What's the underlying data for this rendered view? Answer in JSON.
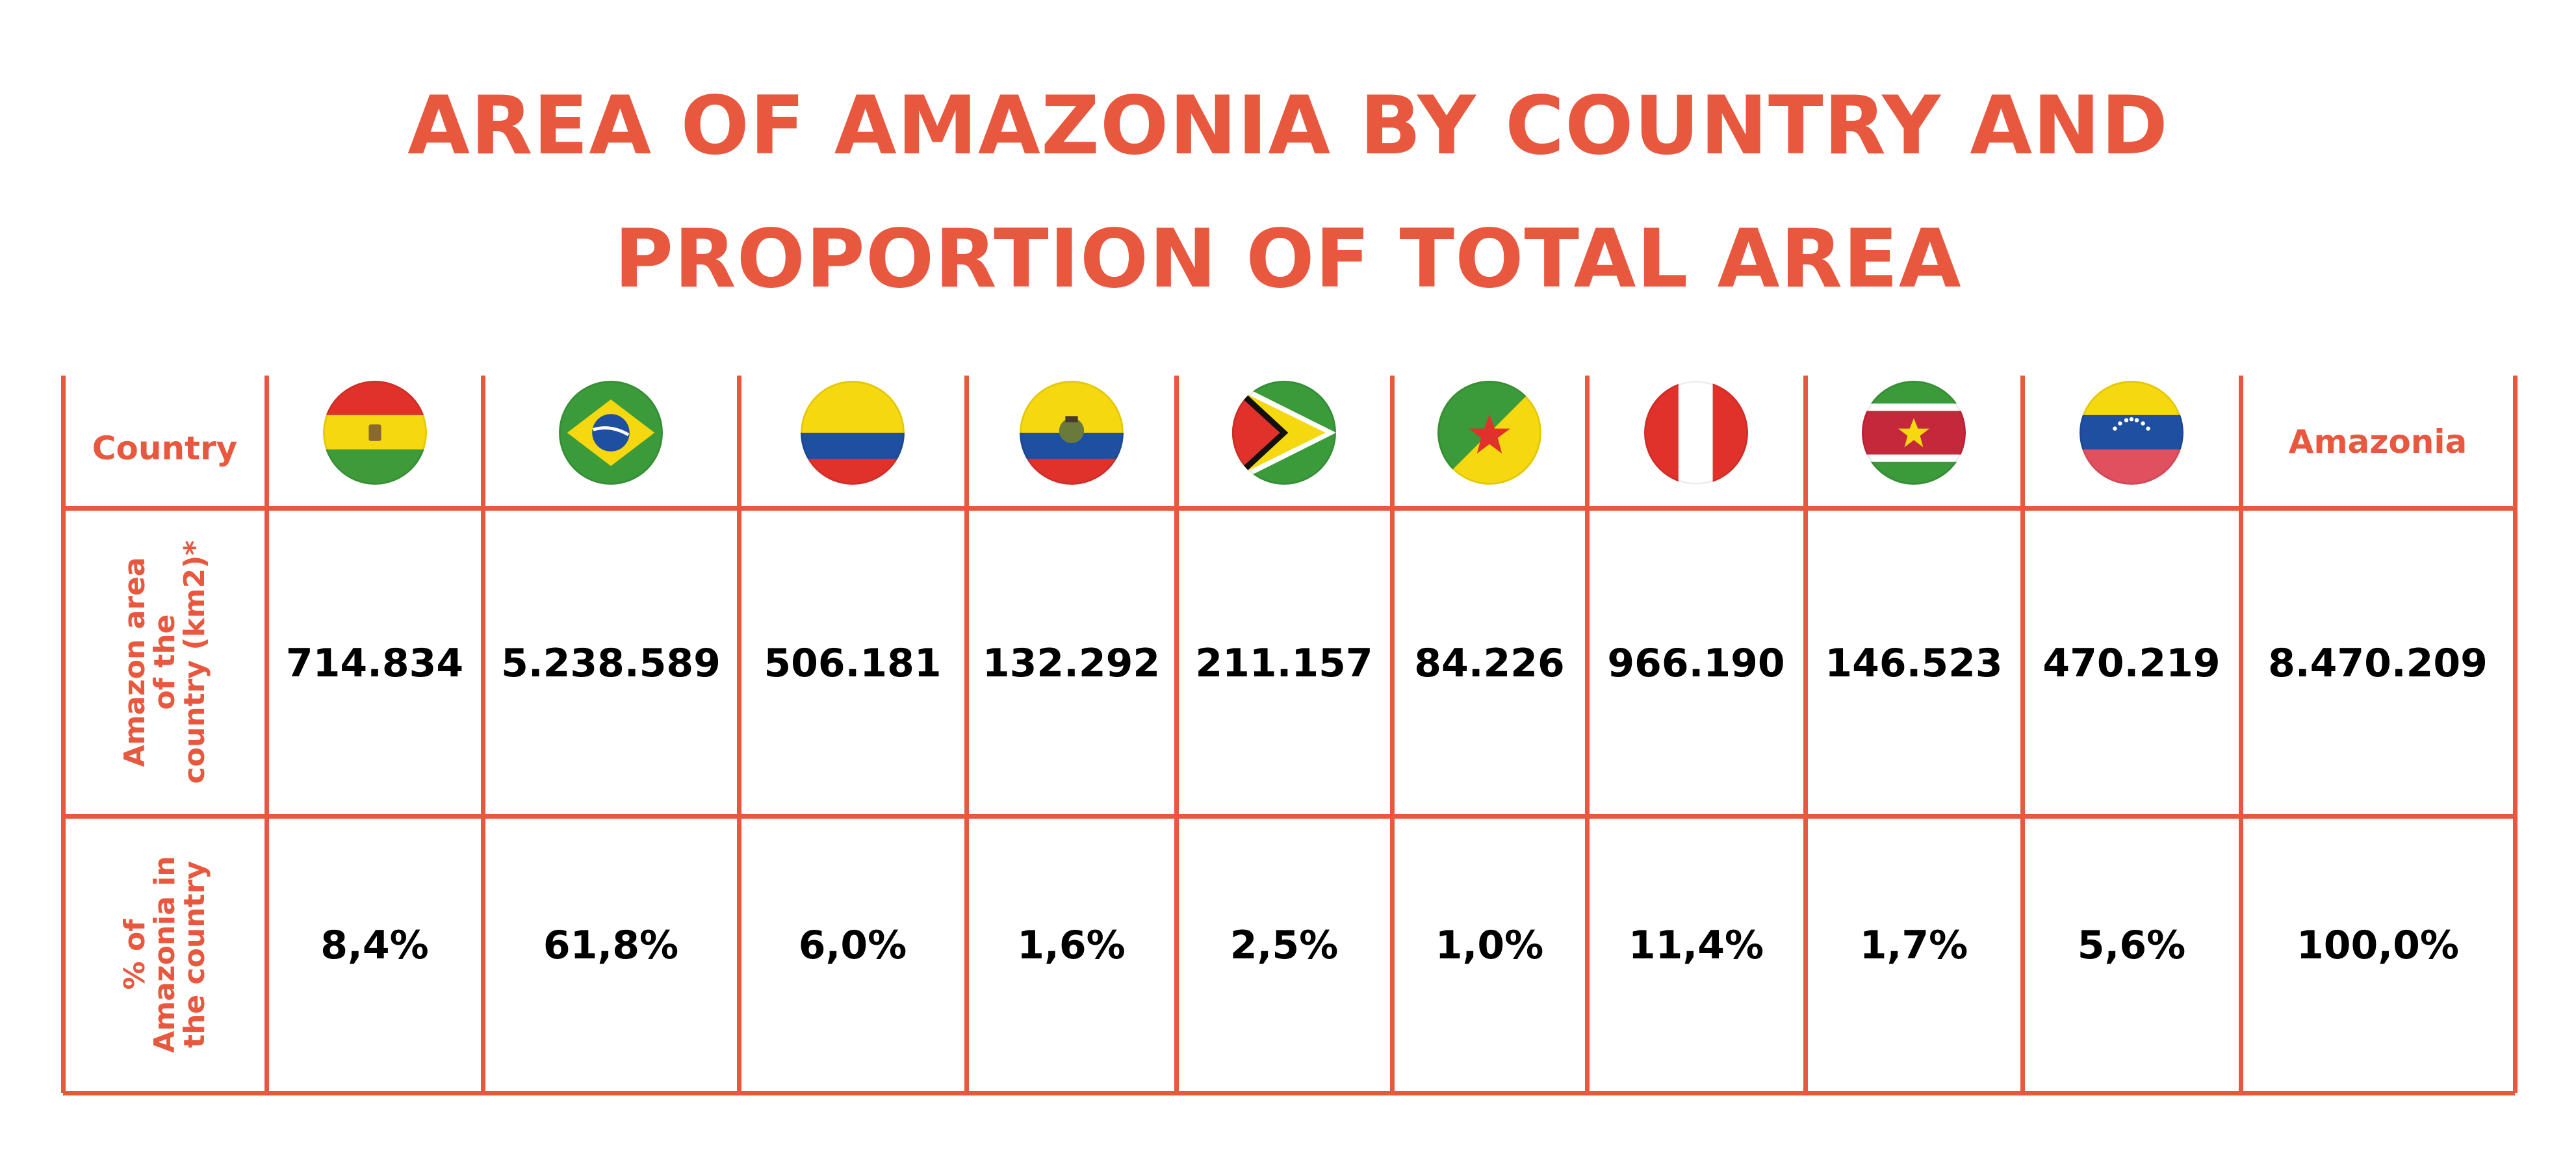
{
  "title": {
    "line1": "AREA OF AMAZONIA BY COUNTRY AND",
    "line2": "PROPORTION OF TOTAL AREA"
  },
  "table": {
    "header_label": "Country",
    "total_label": "Amazonia",
    "row_labels": {
      "area": "Amazon area\nof the\ncountry (km2)*",
      "percent": "% of\nAmazonia in\nthe country"
    },
    "flags": [
      "bolivia-flag-icon",
      "brazil-flag-icon",
      "colombia-flag-icon",
      "ecuador-flag-icon",
      "guyana-flag-icon",
      "french-guiana-flag-icon",
      "peru-flag-icon",
      "suriname-flag-icon",
      "venezuela-flag-icon"
    ],
    "accent_color": "#e8583f"
  },
  "chart_data": {
    "type": "table",
    "title": "AREA OF AMAZONIA BY COUNTRY AND PROPORTION OF TOTAL AREA",
    "columns": [
      "Bolivia",
      "Brazil",
      "Colombia",
      "Ecuador",
      "Guyana",
      "French Guiana",
      "Peru",
      "Suriname",
      "Venezuela",
      "Amazonia"
    ],
    "area_km2": [
      714834,
      5238589,
      506181,
      132292,
      211157,
      84226,
      966190,
      146523,
      470219,
      8470209
    ],
    "area_display": [
      "714.834",
      "5.238.589",
      "506.181",
      "132.292",
      "211.157",
      "84.226",
      "966.190",
      "146.523",
      "470.219",
      "8.470.209"
    ],
    "percent": [
      8.4,
      61.8,
      6.0,
      1.6,
      2.5,
      1.0,
      11.4,
      1.7,
      5.6,
      100.0
    ],
    "percent_display": [
      "8,4%",
      "61,8%",
      "6,0%",
      "1,6%",
      "2,5%",
      "1,0%",
      "11,4%",
      "1,7%",
      "5,6%",
      "100,0%"
    ]
  }
}
